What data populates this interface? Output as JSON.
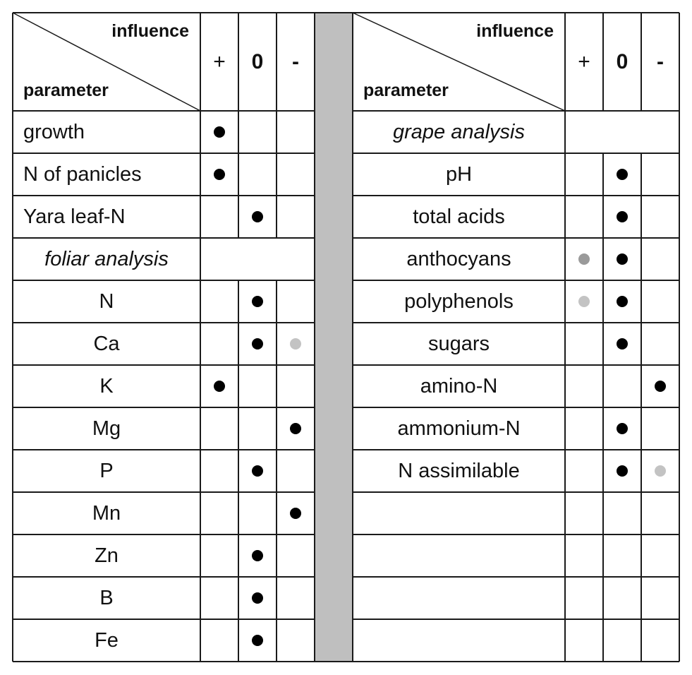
{
  "header": {
    "influence_label": "influence",
    "parameter_label": "parameter",
    "col_plus": "+",
    "col_zero": "0",
    "col_minus": "-"
  },
  "colors": {
    "line": "#1a1a1a",
    "separator": "#bfbfbf",
    "dot_black": "#000000",
    "dot_mid": "#9a9a9a",
    "dot_light": "#c3c3c3"
  },
  "left_rows": [
    {
      "label": "growth",
      "style": "text-left",
      "plus": "black",
      "zero": "",
      "minus": ""
    },
    {
      "label": "N of panicles",
      "style": "text-left",
      "plus": "black",
      "zero": "",
      "minus": ""
    },
    {
      "label": "Yara leaf-N",
      "style": "text-left",
      "plus": "",
      "zero": "black",
      "minus": ""
    },
    {
      "label": "foliar analysis",
      "style": "section",
      "plus": "",
      "zero": "",
      "minus": ""
    },
    {
      "label": "N",
      "style": "center",
      "plus": "",
      "zero": "black",
      "minus": ""
    },
    {
      "label": "Ca",
      "style": "center",
      "plus": "",
      "zero": "black",
      "minus": "light"
    },
    {
      "label": "K",
      "style": "center",
      "plus": "black",
      "zero": "",
      "minus": ""
    },
    {
      "label": "Mg",
      "style": "center",
      "plus": "",
      "zero": "",
      "minus": "black"
    },
    {
      "label": "P",
      "style": "center",
      "plus": "",
      "zero": "black",
      "minus": ""
    },
    {
      "label": "Mn",
      "style": "center",
      "plus": "",
      "zero": "",
      "minus": "black"
    },
    {
      "label": "Zn",
      "style": "center",
      "plus": "",
      "zero": "black",
      "minus": ""
    },
    {
      "label": "B",
      "style": "center",
      "plus": "",
      "zero": "black",
      "minus": ""
    },
    {
      "label": "Fe",
      "style": "center",
      "plus": "",
      "zero": "black",
      "minus": ""
    }
  ],
  "right_rows": [
    {
      "label": "grape analysis",
      "style": "section",
      "plus": "",
      "zero": "",
      "minus": ""
    },
    {
      "label": "pH",
      "style": "center",
      "plus": "",
      "zero": "black",
      "minus": ""
    },
    {
      "label": "total acids",
      "style": "center",
      "plus": "",
      "zero": "black",
      "minus": ""
    },
    {
      "label": "anthocyans",
      "style": "center",
      "plus": "mid",
      "zero": "black",
      "minus": ""
    },
    {
      "label": "polyphenols",
      "style": "center",
      "plus": "light",
      "zero": "black",
      "minus": ""
    },
    {
      "label": "sugars",
      "style": "center",
      "plus": "",
      "zero": "black",
      "minus": ""
    },
    {
      "label": "amino-N",
      "style": "center",
      "plus": "",
      "zero": "",
      "minus": "black"
    },
    {
      "label": "ammonium-N",
      "style": "center",
      "plus": "",
      "zero": "black",
      "minus": ""
    },
    {
      "label": "N assimilable",
      "style": "center",
      "plus": "",
      "zero": "black",
      "minus": "light"
    },
    {
      "label": "",
      "style": "center",
      "plus": "",
      "zero": "",
      "minus": ""
    },
    {
      "label": "",
      "style": "center",
      "plus": "",
      "zero": "",
      "minus": ""
    },
    {
      "label": "",
      "style": "center",
      "plus": "",
      "zero": "",
      "minus": ""
    },
    {
      "label": "",
      "style": "center",
      "plus": "",
      "zero": "",
      "minus": ""
    }
  ]
}
